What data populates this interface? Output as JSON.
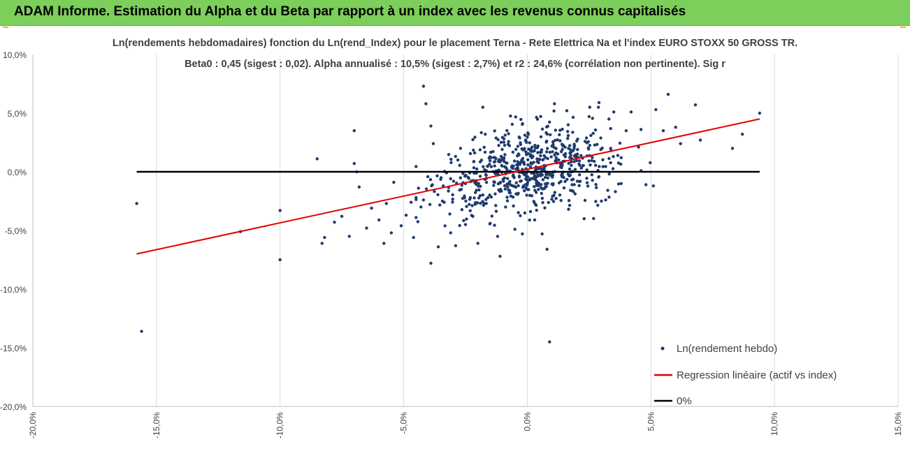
{
  "header": {
    "title": "ADAM Informe. Estimation du Alpha et du Beta par rapport à un index avec les revenus connus capitalisés"
  },
  "colors": {
    "header_bg": "#7ccf5a",
    "points": "#1f3b6e",
    "regression": "#e00000",
    "zero_line": "#000000",
    "grid": "#d9d9d9"
  },
  "chart_data": {
    "type": "scatter",
    "title_line1": "Ln(rendements hebdomadaires) fonction du Ln(rend_Index) pour le placement Terna - Rete Elettrica Na et l'index EURO STOXX 50 GROSS TR.",
    "title_line2": "Beta0 : 0,45 (sigest : 0,02). Alpha annualisé : 10,5% (sigest : 2,7%) et r2 : 24,6% (corrélation non pertinente). Sig r",
    "xlim": [
      -0.2,
      0.15
    ],
    "ylim": [
      -0.2,
      0.1
    ],
    "x_ticks": [
      -0.2,
      -0.15,
      -0.1,
      -0.05,
      0.0,
      0.05,
      0.1,
      0.15
    ],
    "x_tick_labels": [
      "-20,0%",
      "-15,0%",
      "-10,0%",
      "-5,0%",
      "0,0%",
      "5,0%",
      "10,0%",
      "15,0%"
    ],
    "y_ticks": [
      0.1,
      0.05,
      0.0,
      -0.05,
      -0.1,
      -0.15,
      -0.2
    ],
    "y_tick_labels": [
      "10,0%",
      "5,0%",
      "0,0%",
      "-5,0%",
      "-10,0%",
      "-15,0%",
      "-20,0%"
    ],
    "grid": "vertical",
    "legend_position": "bottom-right",
    "series": [
      {
        "name": "Ln(rendement hebdo)",
        "kind": "scatter",
        "cloud": {
          "count": 650,
          "x_mean": 0.0,
          "x_sd": 0.018,
          "intercept": 0.002,
          "slope": 0.45,
          "noise_sd": 0.017
        }
      },
      {
        "name": "Regression linéaire (actif vs index)",
        "kind": "line",
        "x": [
          -0.158,
          0.094
        ],
        "y": [
          -0.07,
          0.045
        ]
      },
      {
        "name": "0%",
        "kind": "line",
        "x": [
          -0.158,
          0.094
        ],
        "y": [
          0.0,
          0.0
        ]
      }
    ],
    "points": [
      [
        -0.158,
        -0.027
      ],
      [
        -0.156,
        -0.136
      ],
      [
        -0.116,
        -0.051
      ],
      [
        -0.1,
        -0.075
      ],
      [
        -0.1,
        -0.033
      ],
      [
        -0.083,
        -0.061
      ],
      [
        -0.082,
        -0.056
      ],
      [
        -0.085,
        0.011
      ],
      [
        -0.078,
        -0.043
      ],
      [
        -0.075,
        -0.038
      ],
      [
        -0.07,
        0.035
      ],
      [
        -0.07,
        0.007
      ],
      [
        -0.069,
        0.0
      ],
      [
        -0.068,
        -0.013
      ],
      [
        -0.072,
        -0.055
      ],
      [
        -0.065,
        -0.048
      ],
      [
        -0.063,
        -0.031
      ],
      [
        -0.06,
        -0.041
      ],
      [
        -0.058,
        -0.061
      ],
      [
        -0.057,
        -0.027
      ],
      [
        -0.055,
        -0.052
      ],
      [
        -0.054,
        -0.009
      ],
      [
        -0.051,
        -0.046
      ],
      [
        -0.049,
        -0.037
      ],
      [
        -0.047,
        -0.026
      ],
      [
        -0.046,
        -0.056
      ],
      [
        -0.045,
        -0.039
      ],
      [
        -0.044,
        -0.014
      ],
      [
        -0.043,
        -0.03
      ],
      [
        -0.042,
        -0.024
      ],
      [
        -0.041,
        0.058
      ],
      [
        -0.042,
        0.073
      ],
      [
        -0.039,
        0.039
      ],
      [
        -0.038,
        0.024
      ],
      [
        -0.036,
        -0.064
      ],
      [
        -0.039,
        -0.078
      ],
      [
        -0.034,
        -0.012
      ],
      [
        -0.031,
        -0.052
      ],
      [
        -0.029,
        -0.063
      ],
      [
        -0.027,
        0.02
      ],
      [
        -0.025,
        -0.045
      ],
      [
        -0.022,
        -0.038
      ],
      [
        -0.02,
        -0.061
      ],
      [
        -0.018,
        0.055
      ],
      [
        -0.015,
        -0.044
      ],
      [
        -0.012,
        -0.055
      ],
      [
        -0.011,
        -0.072
      ],
      [
        -0.005,
        -0.049
      ],
      [
        -0.002,
        -0.053
      ],
      [
        0.003,
        -0.041
      ],
      [
        0.006,
        -0.053
      ],
      [
        0.008,
        -0.066
      ],
      [
        0.009,
        -0.145
      ],
      [
        0.011,
        0.058
      ],
      [
        0.016,
        0.052
      ],
      [
        0.025,
        0.047
      ],
      [
        0.035,
        0.051
      ],
      [
        0.042,
        0.051
      ],
      [
        0.045,
        0.021
      ],
      [
        0.048,
        -0.011
      ],
      [
        0.051,
        -0.012
      ],
      [
        0.052,
        0.053
      ],
      [
        0.055,
        0.035
      ],
      [
        0.057,
        0.066
      ],
      [
        0.06,
        0.038
      ],
      [
        0.062,
        0.024
      ],
      [
        0.068,
        0.057
      ],
      [
        0.07,
        0.027
      ],
      [
        0.083,
        0.02
      ],
      [
        0.087,
        0.032
      ],
      [
        0.094,
        0.05
      ],
      [
        0.029,
        0.059
      ],
      [
        0.023,
        -0.04
      ],
      [
        0.03,
        -0.025
      ],
      [
        0.038,
        -0.01
      ],
      [
        0.04,
        0.035
      ],
      [
        0.038,
        0.012
      ],
      [
        0.046,
        0.036
      ],
      [
        0.033,
        0.045
      ],
      [
        -0.017,
        0.032
      ]
    ]
  },
  "legend": {
    "items": [
      {
        "label": "Ln(rendement hebdo)"
      },
      {
        "label": "Regression linéaire (actif vs index)"
      },
      {
        "label": "0%"
      }
    ]
  }
}
